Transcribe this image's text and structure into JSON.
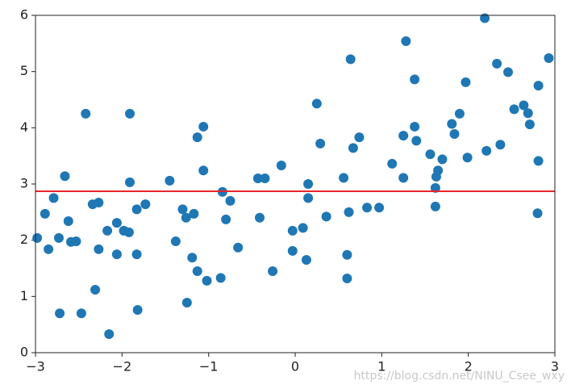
{
  "chart_data": {
    "type": "scatter",
    "x": [
      -2.98,
      -2.89,
      -2.85,
      -2.79,
      -2.73,
      -2.72,
      -2.66,
      -2.62,
      -2.59,
      -2.53,
      -2.47,
      -2.42,
      -2.34,
      -2.31,
      -2.27,
      -2.27,
      -2.17,
      -2.15,
      -2.06,
      -2.06,
      -1.98,
      -1.92,
      -1.91,
      -1.91,
      -1.83,
      -1.83,
      -1.82,
      -1.73,
      -1.45,
      -1.38,
      -1.3,
      -1.26,
      -1.25,
      -1.19,
      -1.17,
      -1.13,
      -1.13,
      -1.06,
      -1.06,
      -1.02,
      -0.86,
      -0.84,
      -0.8,
      -0.75,
      -0.66,
      -0.43,
      -0.41,
      -0.35,
      -0.26,
      -0.16,
      -0.03,
      -0.03,
      0.09,
      0.13,
      0.15,
      0.15,
      0.25,
      0.29,
      0.36,
      0.56,
      0.6,
      0.6,
      0.62,
      0.64,
      0.67,
      0.74,
      0.83,
      0.97,
      1.12,
      1.25,
      1.25,
      1.28,
      1.38,
      1.38,
      1.4,
      1.56,
      1.62,
      1.62,
      1.63,
      1.65,
      1.7,
      1.81,
      1.84,
      1.9,
      1.97,
      1.99,
      2.19,
      2.21,
      2.33,
      2.37,
      2.46,
      2.53,
      2.64,
      2.69,
      2.71,
      2.81,
      2.8,
      2.81,
      2.93
    ],
    "values": [
      2.04,
      2.47,
      1.84,
      2.75,
      2.04,
      0.7,
      3.14,
      2.34,
      1.97,
      1.98,
      0.7,
      4.25,
      2.64,
      1.12,
      2.67,
      1.84,
      2.17,
      0.33,
      2.31,
      1.75,
      2.17,
      2.14,
      4.25,
      3.03,
      2.55,
      1.75,
      0.76,
      2.64,
      3.06,
      1.98,
      2.55,
      2.4,
      0.89,
      1.69,
      2.47,
      3.83,
      1.45,
      4.02,
      3.24,
      1.28,
      1.33,
      2.86,
      2.37,
      2.7,
      1.87,
      3.1,
      2.4,
      3.1,
      1.45,
      3.33,
      2.17,
      1.81,
      2.22,
      1.65,
      3.0,
      2.75,
      4.43,
      3.72,
      2.42,
      3.11,
      1.74,
      1.32,
      2.5,
      5.22,
      3.64,
      3.83,
      2.58,
      2.58,
      3.36,
      3.11,
      3.86,
      5.54,
      4.86,
      4.02,
      3.77,
      3.53,
      2.6,
      2.93,
      3.13,
      3.24,
      3.44,
      4.07,
      3.89,
      4.25,
      4.81,
      3.47,
      5.95,
      3.59,
      5.14,
      3.7,
      4.99,
      4.33,
      4.4,
      4.26,
      4.06,
      4.75,
      2.48,
      3.41,
      5.24
    ],
    "color": "#1f77b4",
    "hline": {
      "value": 2.87,
      "color": "#e8262b"
    },
    "xlim": [
      -3,
      3
    ],
    "ylim": [
      0,
      6
    ],
    "xticks": [
      {
        "value": -3,
        "label": "−3"
      },
      {
        "value": -2,
        "label": "−2"
      },
      {
        "value": -1,
        "label": "−1"
      },
      0,
      1,
      2,
      3
    ],
    "yticks": [
      0,
      1,
      2,
      3,
      4,
      5,
      6
    ],
    "watermark": "https://blog.csdn.net/NINU_Csee_wxy"
  }
}
